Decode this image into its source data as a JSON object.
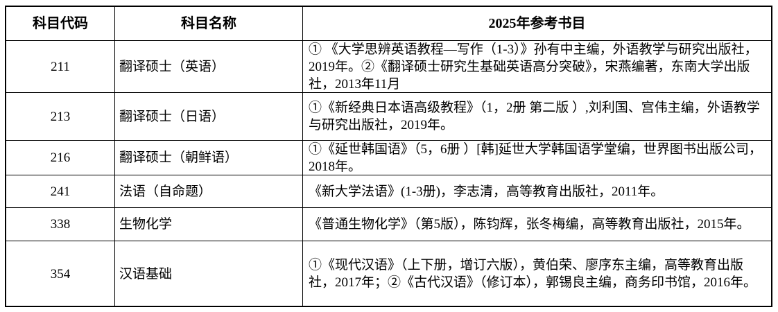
{
  "page": {
    "background_color": "#ffffff",
    "border_color": "#000000",
    "text_color": "#000000"
  },
  "table": {
    "headers": [
      "科目代码",
      "科目名称",
      "2025年参考书目"
    ],
    "rows": [
      {
        "code": "211",
        "name": "翻译硕士（英语）",
        "books": "① 《大学思辨英语教程—写作（1-3）》孙有中主编，外语教学与研究出版社，2019年。②《翻译硕士研究生基础英语高分突破》，宋燕编著，东南大学出版社，2013年11月"
      },
      {
        "code": "213",
        "name": "翻译硕士（日语）",
        "books": "①《新经典日本语高级教程》（1，2册 第二版 ）,刘利国、宫伟主编，外语教学与研究出版社，2019年。"
      },
      {
        "code": "216",
        "name": "翻译硕士（朝鲜语）",
        "books": "①《延世韩国语》（5，6册 ）[韩]延世大学韩国语学堂编，世界图书出版公司，2018年。"
      },
      {
        "code": "241",
        "name": "法语（自命题）",
        "books": "《新大学法语》(1-3册)，李志清，高等教育出版社，2011年。"
      },
      {
        "code": "338",
        "name": "生物化学",
        "books": "《普通生物化学》（第5版），陈钧辉，张冬梅编，高等教育出版社，2015年。"
      },
      {
        "code": "354",
        "name": "汉语基础",
        "books": "①《现代汉语》（上下册，增订六版），黄伯荣、廖序东主编，高等教育出版社，2017年；②《古代汉语》（修订本），郭锡良主编，商务印书馆，2016年。"
      }
    ]
  }
}
